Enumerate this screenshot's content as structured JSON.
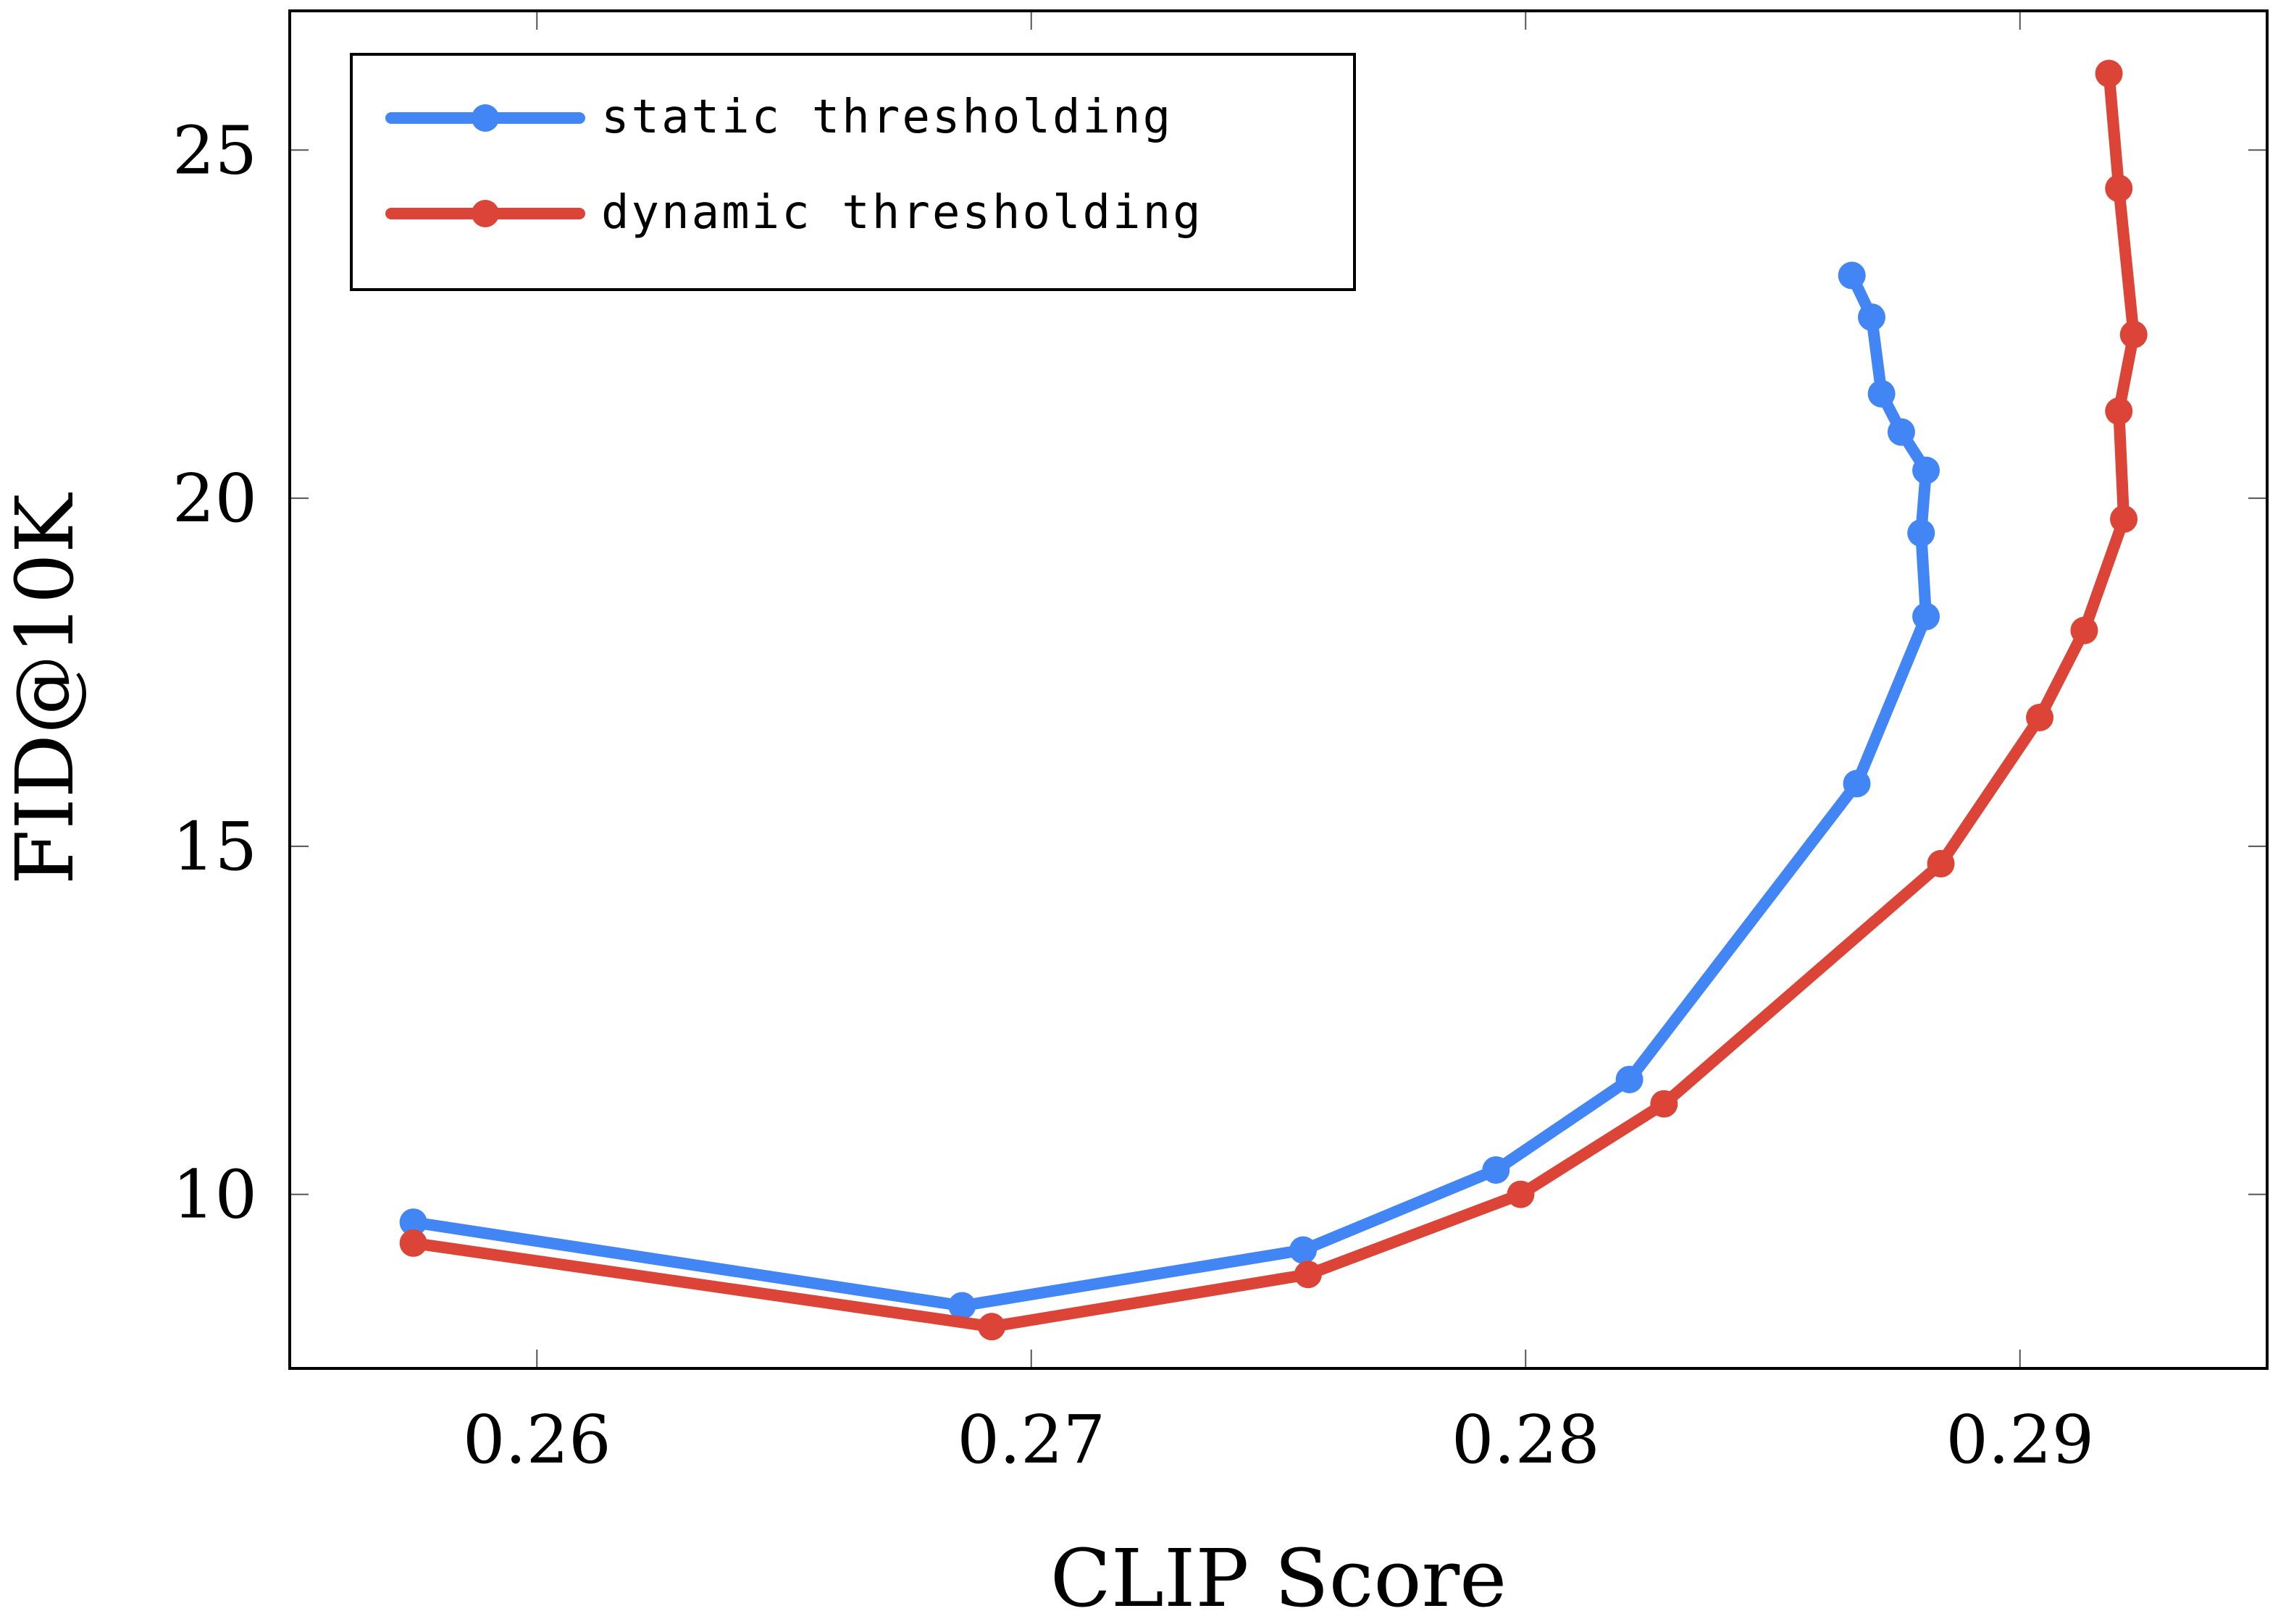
{
  "chart_data": {
    "type": "line",
    "xlabel": "CLIP Score",
    "ylabel": "FID@10K",
    "xlim": [
      0.255,
      0.295
    ],
    "ylim": [
      7.5,
      27.0
    ],
    "xticks": [
      0.26,
      0.27,
      0.28,
      0.29
    ],
    "xtick_labels": [
      "0.26",
      "0.27",
      "0.28",
      "0.29"
    ],
    "yticks": [
      10,
      15,
      20,
      25
    ],
    "ytick_labels": [
      "10",
      "15",
      "20",
      "25"
    ],
    "grid": false,
    "legend_position": "top-left",
    "series": [
      {
        "name": "static thresholding",
        "color": "#4285f4",
        "x": [
          0.2575,
          0.2686,
          0.2755,
          0.2794,
          0.2821,
          0.2867,
          0.2881,
          0.288,
          0.2881,
          0.2876,
          0.2872,
          0.287,
          0.2866
        ],
        "y": [
          9.6,
          8.4,
          9.2,
          10.35,
          11.65,
          15.9,
          18.3,
          19.5,
          20.4,
          20.95,
          21.5,
          22.6,
          23.2
        ]
      },
      {
        "name": "dynamic thresholding",
        "color": "#db4437",
        "x": [
          0.2575,
          0.2692,
          0.2756,
          0.2799,
          0.2828,
          0.2884,
          0.2904,
          0.2913,
          0.2921,
          0.292,
          0.2923,
          0.292,
          0.2918
        ],
        "y": [
          9.3,
          8.1,
          8.85,
          10.0,
          11.3,
          14.75,
          16.85,
          18.1,
          19.7,
          21.25,
          22.35,
          24.45,
          26.1
        ]
      }
    ]
  }
}
